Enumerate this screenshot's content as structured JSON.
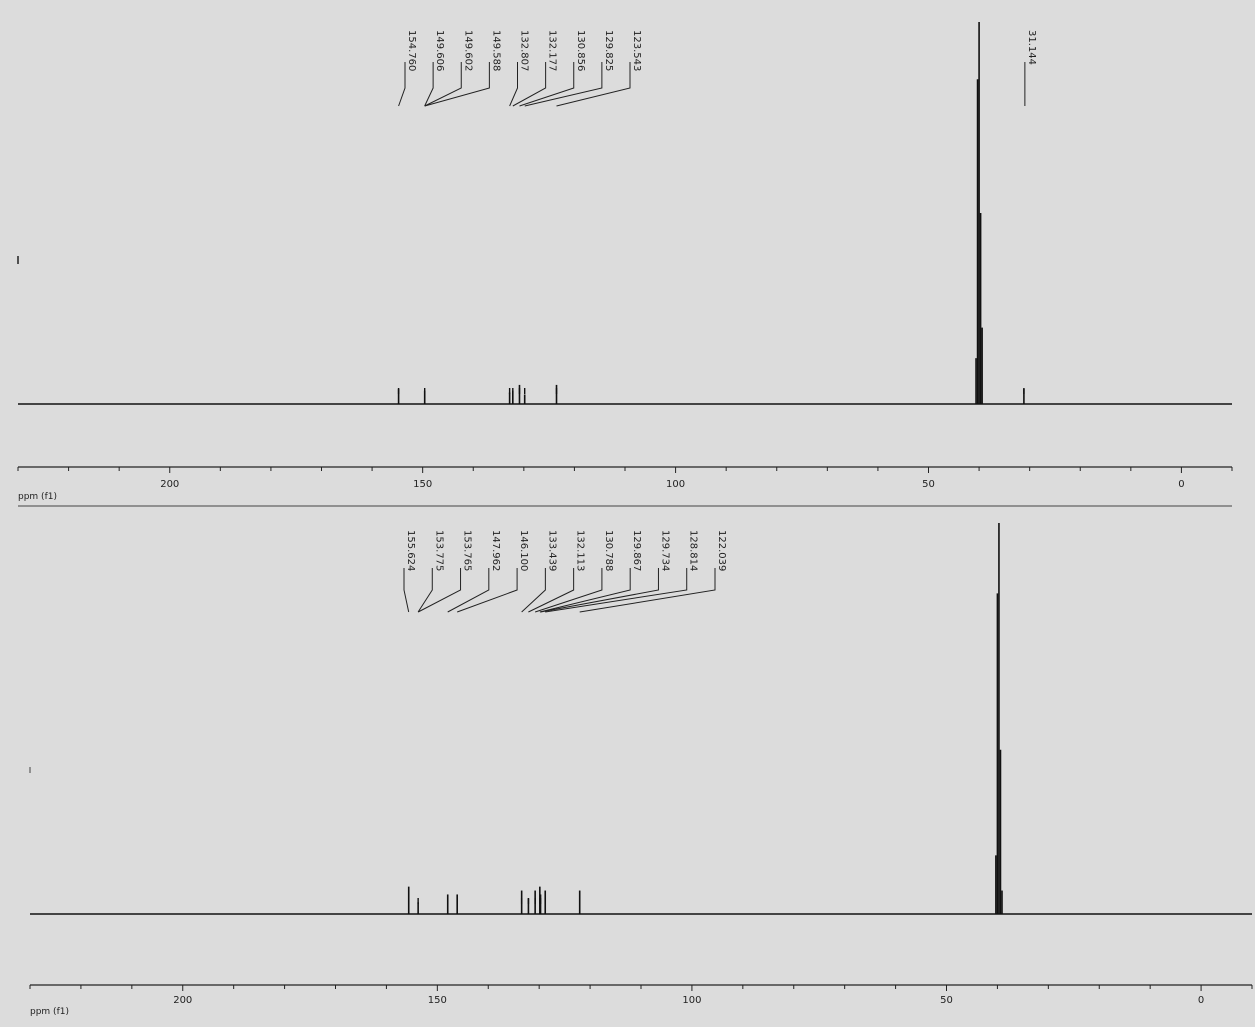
{
  "chart_data": [
    {
      "type": "line",
      "xlabel": "ppm (f1)",
      "xlim": [
        230,
        -10
      ],
      "x_ticks": [
        "200",
        "150",
        "100",
        "50",
        "0"
      ],
      "peak_labels": [
        "154.760",
        "149.606",
        "149.602",
        "149.588",
        "132.807",
        "132.177",
        "130.856",
        "129.825",
        "123.543",
        "31.144"
      ],
      "peaks": [
        {
          "x": 154.76,
          "y": 0.04
        },
        {
          "x": 149.6,
          "y": 0.035
        },
        {
          "x": 132.81,
          "y": 0.03
        },
        {
          "x": 132.18,
          "y": 0.035
        },
        {
          "x": 130.86,
          "y": 0.05
        },
        {
          "x": 129.83,
          "y": 0.025
        },
        {
          "x": 123.54,
          "y": 0.05
        },
        {
          "x": 40.6,
          "y": 0.12
        },
        {
          "x": 40.3,
          "y": 0.85
        },
        {
          "x": 40.0,
          "y": 1.0
        },
        {
          "x": 39.7,
          "y": 0.5
        },
        {
          "x": 39.4,
          "y": 0.2
        },
        {
          "x": 31.14,
          "y": 0.04
        }
      ]
    },
    {
      "type": "line",
      "xlabel": "ppm (f1)",
      "xlim": [
        230,
        -10
      ],
      "x_ticks": [
        "200",
        "150",
        "100",
        "50",
        "0"
      ],
      "peak_labels": [
        "155.624",
        "153.775",
        "153.765",
        "147.962",
        "146.100",
        "133.439",
        "132.113",
        "130.788",
        "129.867",
        "129.734",
        "128.814",
        "122.039"
      ],
      "peaks": [
        {
          "x": 155.62,
          "y": 0.07
        },
        {
          "x": 153.77,
          "y": 0.03
        },
        {
          "x": 147.96,
          "y": 0.05
        },
        {
          "x": 146.1,
          "y": 0.05
        },
        {
          "x": 133.44,
          "y": 0.06
        },
        {
          "x": 132.11,
          "y": 0.04
        },
        {
          "x": 130.79,
          "y": 0.06
        },
        {
          "x": 129.87,
          "y": 0.07
        },
        {
          "x": 129.73,
          "y": 0.05
        },
        {
          "x": 128.81,
          "y": 0.06
        },
        {
          "x": 122.04,
          "y": 0.06
        },
        {
          "x": 40.3,
          "y": 0.15
        },
        {
          "x": 40.0,
          "y": 0.82
        },
        {
          "x": 39.7,
          "y": 1.0
        },
        {
          "x": 39.4,
          "y": 0.42
        },
        {
          "x": 39.1,
          "y": 0.06
        }
      ]
    }
  ]
}
